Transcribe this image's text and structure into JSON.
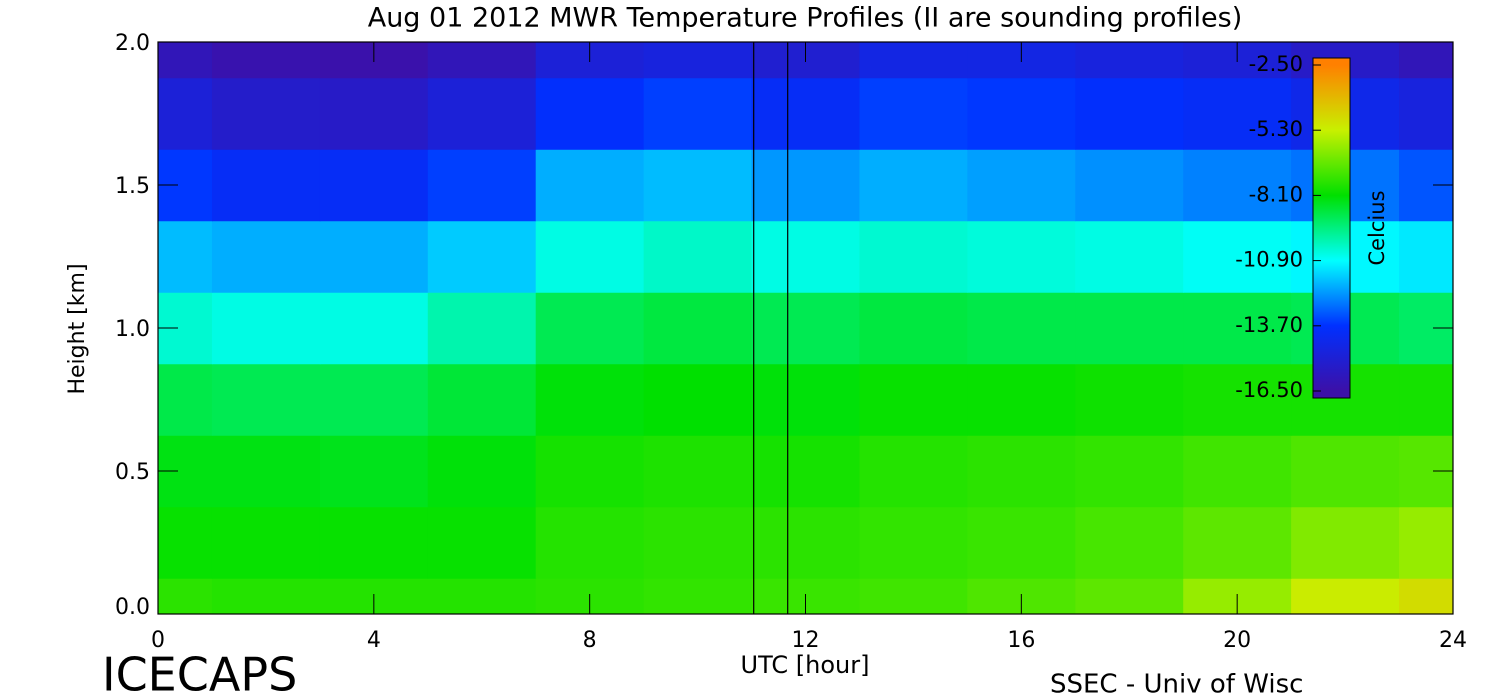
{
  "chart_data": {
    "type": "contour",
    "title": "Aug 01 2012 MWR Temperature Profiles (II are sounding profiles)",
    "xlabel": "UTC [hour]",
    "ylabel": "Height [km]",
    "footer_left": "ICECAPS",
    "footer_right": "SSEC - Univ of Wisc",
    "colorbar_label": "Celcius",
    "x": [
      0,
      2,
      4,
      6,
      8,
      10,
      12,
      14,
      16,
      18,
      20,
      22,
      24
    ],
    "y": [
      0,
      0.25,
      0.5,
      0.75,
      1.0,
      1.25,
      1.5,
      1.75,
      2.0
    ],
    "z": [
      [
        -7.5,
        -7.6,
        -7.6,
        -7.6,
        -7.5,
        -7.4,
        -7.3,
        -7.2,
        -7.0,
        -6.8,
        -6.0,
        -5.2,
        -4.8
      ],
      [
        -8.0,
        -8.0,
        -8.0,
        -8.0,
        -7.6,
        -7.5,
        -7.5,
        -7.4,
        -7.3,
        -7.1,
        -6.8,
        -6.3,
        -6.0
      ],
      [
        -8.3,
        -8.3,
        -8.4,
        -8.2,
        -7.8,
        -7.7,
        -7.8,
        -7.6,
        -7.5,
        -7.4,
        -7.2,
        -7.0,
        -6.9
      ],
      [
        -8.9,
        -9.0,
        -9.0,
        -8.7,
        -8.2,
        -8.1,
        -8.2,
        -8.0,
        -8.0,
        -7.9,
        -7.8,
        -7.8,
        -7.8
      ],
      [
        -10.4,
        -10.6,
        -10.6,
        -10.0,
        -9.0,
        -8.8,
        -9.0,
        -8.8,
        -8.9,
        -8.9,
        -8.9,
        -9.0,
        -9.2
      ],
      [
        -11.8,
        -12.0,
        -12.0,
        -11.6,
        -10.6,
        -10.3,
        -10.6,
        -10.4,
        -10.5,
        -10.6,
        -10.8,
        -11.0,
        -11.2
      ],
      [
        -13.6,
        -14.0,
        -14.0,
        -13.5,
        -12.0,
        -11.8,
        -12.3,
        -12.0,
        -12.2,
        -12.4,
        -12.6,
        -12.8,
        -13.2
      ],
      [
        -15.0,
        -15.4,
        -15.5,
        -15.0,
        -13.8,
        -13.5,
        -14.0,
        -13.5,
        -13.6,
        -13.8,
        -14.0,
        -14.4,
        -14.8
      ],
      [
        -16.0,
        -16.3,
        -16.4,
        -16.0,
        -15.0,
        -14.8,
        -15.2,
        -14.6,
        -14.6,
        -14.8,
        -15.0,
        -15.5,
        -16.0
      ]
    ],
    "sounding_times": [
      11.04,
      11.67
    ],
    "xlim": [
      0,
      24
    ],
    "xticks": [
      0,
      4,
      8,
      12,
      16,
      20,
      24
    ],
    "ylim": [
      0,
      2
    ],
    "yticks": [
      {
        "value": 0,
        "label": "0.0"
      },
      0.5,
      {
        "value": 1,
        "label": "1.0"
      },
      1.5,
      {
        "value": 2,
        "label": "2.0"
      }
    ],
    "clim": [
      -16.8,
      -2.2
    ],
    "cticks": [
      {
        "value": -16.5,
        "label": "-16.50"
      },
      {
        "value": -13.7,
        "label": "-13.70"
      },
      {
        "value": -10.9,
        "label": "-10.90"
      },
      {
        "value": -8.1,
        "label": "-8.10"
      },
      {
        "value": -5.3,
        "label": "-5.30"
      },
      {
        "value": -2.5,
        "label": "-2.50"
      }
    ],
    "colormap": [
      "#3c10a8",
      "#0030ff",
      "#00ffff",
      "#00e000",
      "#c8f000",
      "#ff8000"
    ]
  }
}
